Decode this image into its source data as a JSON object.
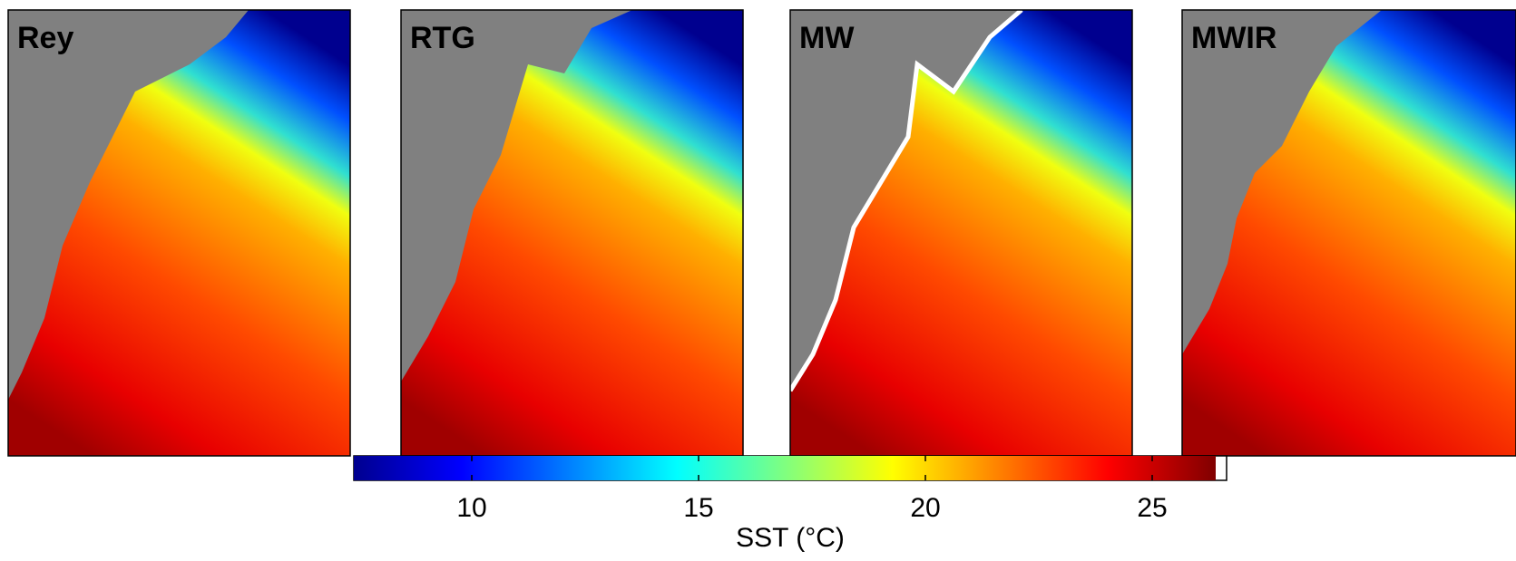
{
  "chart_data": {
    "type": "heatmap",
    "panels": [
      {
        "title": "Rey"
      },
      {
        "title": "RTG"
      },
      {
        "title": "MW"
      },
      {
        "title": "MWIR"
      }
    ],
    "colorbar": {
      "label": "SST (°C)",
      "lim": [
        7.4,
        26.4
      ],
      "ticks": [
        10,
        15,
        20,
        25
      ],
      "colormap": "jet"
    }
  }
}
